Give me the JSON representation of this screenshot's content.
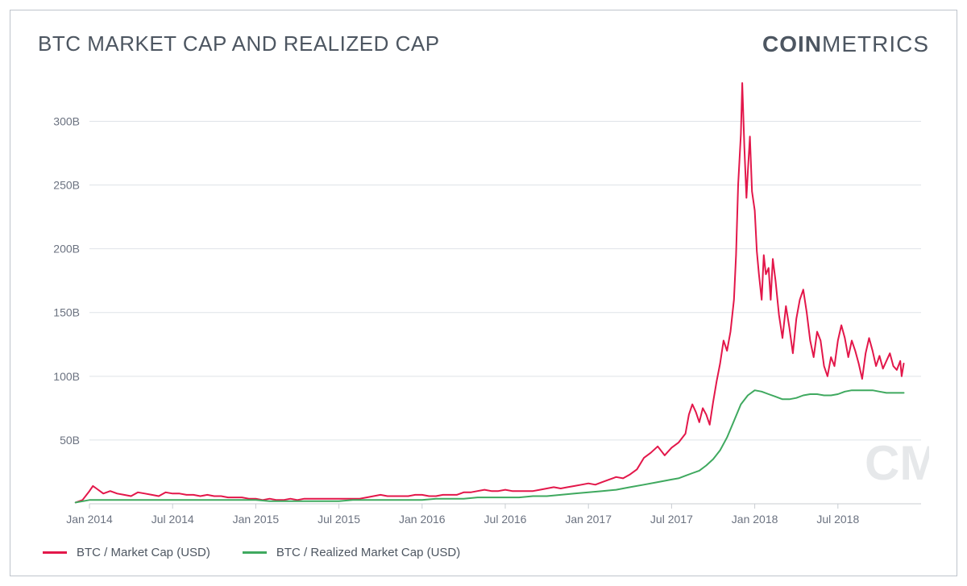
{
  "title": "BTC MARKET CAP AND REALIZED CAP",
  "title_fontsize": 26,
  "title_weight": 400,
  "title_color": "#4d5661",
  "brand_bold": "COIN",
  "brand_light": "METRICS",
  "brand_fontsize": 28,
  "brand_color": "#4d5661",
  "frame_border_color": "#bfc4cc",
  "background_color": "#ffffff",
  "watermark_text": "CM",
  "watermark_color": "#b9bec6",
  "chart": {
    "type": "line",
    "x_min": 0,
    "x_max": 120,
    "x_ticks": [
      {
        "pos": 0,
        "label": "Jan 2014"
      },
      {
        "pos": 12,
        "label": "Jul 2014"
      },
      {
        "pos": 24,
        "label": "Jan 2015"
      },
      {
        "pos": 36,
        "label": "Jul 2015"
      },
      {
        "pos": 48,
        "label": "Jan 2016"
      },
      {
        "pos": 60,
        "label": "Jul 2016"
      },
      {
        "pos": 72,
        "label": "Jan 2017"
      },
      {
        "pos": 84,
        "label": "Jul 2017"
      },
      {
        "pos": 96,
        "label": "Jan 2018"
      },
      {
        "pos": 108,
        "label": "Jul 2018"
      }
    ],
    "y_min": 0,
    "y_max": 330,
    "y_ticks": [
      {
        "val": 50,
        "label": "50B"
      },
      {
        "val": 100,
        "label": "100B"
      },
      {
        "val": 150,
        "label": "150B"
      },
      {
        "val": 200,
        "label": "200B"
      },
      {
        "val": 250,
        "label": "250B"
      },
      {
        "val": 300,
        "label": "300B"
      }
    ],
    "grid_color": "#dfe3e8",
    "axis_line_color": "#c8ccd2",
    "tick_label_color": "#6b7280",
    "tick_fontsize": 14,
    "series": [
      {
        "name": "BTC / Market Cap (USD)",
        "color": "#e3174a",
        "line_width": 2,
        "points": [
          [
            -2,
            1
          ],
          [
            -1,
            3
          ],
          [
            0,
            10
          ],
          [
            0.5,
            14
          ],
          [
            1,
            12
          ],
          [
            2,
            8
          ],
          [
            3,
            10
          ],
          [
            4,
            8
          ],
          [
            5,
            7
          ],
          [
            6,
            6
          ],
          [
            7,
            9
          ],
          [
            8,
            8
          ],
          [
            9,
            7
          ],
          [
            10,
            6
          ],
          [
            11,
            9
          ],
          [
            12,
            8
          ],
          [
            13,
            8
          ],
          [
            14,
            7
          ],
          [
            15,
            7
          ],
          [
            16,
            6
          ],
          [
            17,
            7
          ],
          [
            18,
            6
          ],
          [
            19,
            6
          ],
          [
            20,
            5
          ],
          [
            21,
            5
          ],
          [
            22,
            5
          ],
          [
            23,
            4
          ],
          [
            24,
            4
          ],
          [
            25,
            3
          ],
          [
            26,
            4
          ],
          [
            27,
            3
          ],
          [
            28,
            3
          ],
          [
            29,
            4
          ],
          [
            30,
            3
          ],
          [
            31,
            4
          ],
          [
            32,
            4
          ],
          [
            33,
            4
          ],
          [
            34,
            4
          ],
          [
            35,
            4
          ],
          [
            36,
            4
          ],
          [
            37,
            4
          ],
          [
            38,
            4
          ],
          [
            39,
            4
          ],
          [
            40,
            5
          ],
          [
            41,
            6
          ],
          [
            42,
            7
          ],
          [
            43,
            6
          ],
          [
            44,
            6
          ],
          [
            45,
            6
          ],
          [
            46,
            6
          ],
          [
            47,
            7
          ],
          [
            48,
            7
          ],
          [
            49,
            6
          ],
          [
            50,
            6
          ],
          [
            51,
            7
          ],
          [
            52,
            7
          ],
          [
            53,
            7
          ],
          [
            54,
            9
          ],
          [
            55,
            9
          ],
          [
            56,
            10
          ],
          [
            57,
            11
          ],
          [
            58,
            10
          ],
          [
            59,
            10
          ],
          [
            60,
            11
          ],
          [
            61,
            10
          ],
          [
            62,
            10
          ],
          [
            63,
            10
          ],
          [
            64,
            10
          ],
          [
            65,
            11
          ],
          [
            66,
            12
          ],
          [
            67,
            13
          ],
          [
            68,
            12
          ],
          [
            69,
            13
          ],
          [
            70,
            14
          ],
          [
            71,
            15
          ],
          [
            72,
            16
          ],
          [
            73,
            15
          ],
          [
            74,
            17
          ],
          [
            75,
            19
          ],
          [
            76,
            21
          ],
          [
            77,
            20
          ],
          [
            78,
            23
          ],
          [
            79,
            27
          ],
          [
            80,
            36
          ],
          [
            81,
            40
          ],
          [
            82,
            45
          ],
          [
            83,
            38
          ],
          [
            84,
            44
          ],
          [
            85,
            48
          ],
          [
            86,
            55
          ],
          [
            86.5,
            70
          ],
          [
            87,
            78
          ],
          [
            87.5,
            72
          ],
          [
            88,
            64
          ],
          [
            88.5,
            75
          ],
          [
            89,
            70
          ],
          [
            89.5,
            62
          ],
          [
            90,
            80
          ],
          [
            90.5,
            96
          ],
          [
            91,
            110
          ],
          [
            91.5,
            128
          ],
          [
            92,
            120
          ],
          [
            92.5,
            135
          ],
          [
            93,
            160
          ],
          [
            93.3,
            195
          ],
          [
            93.6,
            250
          ],
          [
            94,
            290
          ],
          [
            94.2,
            330
          ],
          [
            94.5,
            280
          ],
          [
            94.8,
            240
          ],
          [
            95,
            260
          ],
          [
            95.3,
            288
          ],
          [
            95.6,
            245
          ],
          [
            96,
            230
          ],
          [
            96.3,
            198
          ],
          [
            96.6,
            180
          ],
          [
            97,
            160
          ],
          [
            97.3,
            195
          ],
          [
            97.6,
            180
          ],
          [
            98,
            185
          ],
          [
            98.3,
            160
          ],
          [
            98.6,
            192
          ],
          [
            99,
            175
          ],
          [
            99.5,
            148
          ],
          [
            100,
            130
          ],
          [
            100.5,
            155
          ],
          [
            101,
            138
          ],
          [
            101.5,
            118
          ],
          [
            102,
            145
          ],
          [
            102.5,
            160
          ],
          [
            103,
            168
          ],
          [
            103.5,
            150
          ],
          [
            104,
            128
          ],
          [
            104.5,
            115
          ],
          [
            105,
            135
          ],
          [
            105.5,
            128
          ],
          [
            106,
            108
          ],
          [
            106.5,
            100
          ],
          [
            107,
            115
          ],
          [
            107.5,
            108
          ],
          [
            108,
            128
          ],
          [
            108.5,
            140
          ],
          [
            109,
            130
          ],
          [
            109.5,
            115
          ],
          [
            110,
            128
          ],
          [
            110.5,
            120
          ],
          [
            111,
            110
          ],
          [
            111.5,
            98
          ],
          [
            112,
            118
          ],
          [
            112.5,
            130
          ],
          [
            113,
            120
          ],
          [
            113.5,
            108
          ],
          [
            114,
            116
          ],
          [
            114.5,
            106
          ],
          [
            115,
            112
          ],
          [
            115.5,
            118
          ],
          [
            116,
            108
          ],
          [
            116.5,
            105
          ],
          [
            117,
            112
          ],
          [
            117.2,
            100
          ],
          [
            117.5,
            110
          ]
        ]
      },
      {
        "name": "BTC / Realized Market Cap (USD)",
        "color": "#3fa95f",
        "line_width": 2,
        "points": [
          [
            -2,
            1
          ],
          [
            0,
            3
          ],
          [
            2,
            3
          ],
          [
            4,
            3
          ],
          [
            6,
            3
          ],
          [
            8,
            3
          ],
          [
            10,
            3
          ],
          [
            12,
            3
          ],
          [
            14,
            3
          ],
          [
            16,
            3
          ],
          [
            18,
            3
          ],
          [
            20,
            3
          ],
          [
            22,
            3
          ],
          [
            24,
            3
          ],
          [
            26,
            2
          ],
          [
            28,
            2
          ],
          [
            30,
            2
          ],
          [
            32,
            2
          ],
          [
            34,
            2
          ],
          [
            36,
            2
          ],
          [
            38,
            3
          ],
          [
            40,
            3
          ],
          [
            42,
            3
          ],
          [
            44,
            3
          ],
          [
            46,
            3
          ],
          [
            48,
            3
          ],
          [
            50,
            4
          ],
          [
            52,
            4
          ],
          [
            54,
            4
          ],
          [
            56,
            5
          ],
          [
            58,
            5
          ],
          [
            60,
            5
          ],
          [
            62,
            5
          ],
          [
            64,
            6
          ],
          [
            66,
            6
          ],
          [
            68,
            7
          ],
          [
            70,
            8
          ],
          [
            72,
            9
          ],
          [
            74,
            10
          ],
          [
            76,
            11
          ],
          [
            78,
            13
          ],
          [
            80,
            15
          ],
          [
            82,
            17
          ],
          [
            83,
            18
          ],
          [
            84,
            19
          ],
          [
            85,
            20
          ],
          [
            86,
            22
          ],
          [
            87,
            24
          ],
          [
            88,
            26
          ],
          [
            89,
            30
          ],
          [
            90,
            35
          ],
          [
            91,
            42
          ],
          [
            92,
            52
          ],
          [
            93,
            65
          ],
          [
            94,
            78
          ],
          [
            95,
            85
          ],
          [
            96,
            89
          ],
          [
            97,
            88
          ],
          [
            98,
            86
          ],
          [
            99,
            84
          ],
          [
            100,
            82
          ],
          [
            101,
            82
          ],
          [
            102,
            83
          ],
          [
            103,
            85
          ],
          [
            104,
            86
          ],
          [
            105,
            86
          ],
          [
            106,
            85
          ],
          [
            107,
            85
          ],
          [
            108,
            86
          ],
          [
            109,
            88
          ],
          [
            110,
            89
          ],
          [
            111,
            89
          ],
          [
            112,
            89
          ],
          [
            113,
            89
          ],
          [
            114,
            88
          ],
          [
            115,
            87
          ],
          [
            116,
            87
          ],
          [
            117,
            87
          ],
          [
            117.5,
            87
          ]
        ]
      }
    ]
  },
  "legend": [
    {
      "color": "#e3174a",
      "label": "BTC / Market Cap (USD)"
    },
    {
      "color": "#3fa95f",
      "label": "BTC / Realized Market Cap (USD)"
    }
  ]
}
